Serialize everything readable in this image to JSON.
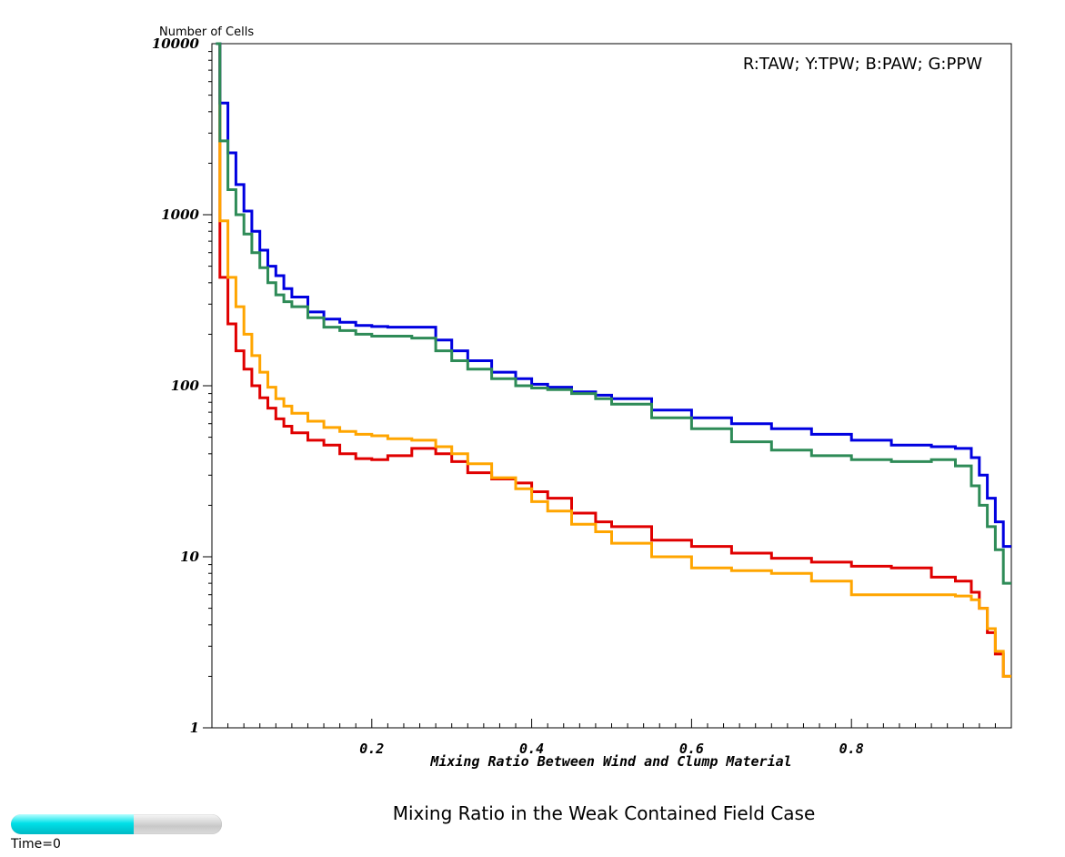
{
  "chart_data": {
    "type": "line",
    "title": "Mixing Ratio in the Weak Contained Field Case",
    "xlabel": "Mixing Ratio Between Wind and Clump Material",
    "ylabel": "Number of Cells",
    "xlim": [
      0,
      1
    ],
    "ylim": [
      1,
      10000
    ],
    "y_scale": "log",
    "x_ticks": [
      0.2,
      0.4,
      0.6,
      0.8
    ],
    "x_tick_labels": [
      "0.2",
      "0.4",
      "0.6",
      "0.8"
    ],
    "y_ticks": [
      1,
      10,
      100,
      1000,
      10000
    ],
    "y_tick_labels": [
      "1",
      "10",
      "100",
      "1000",
      "10000"
    ],
    "legend_text": "R:TAW; Y:TPW; B:PAW; G:PPW",
    "legend_position": "top-right",
    "grid": false,
    "series": [
      {
        "name": "TAW",
        "color": "#e00000",
        "points": [
          [
            0.01,
            430
          ],
          [
            0.02,
            230
          ],
          [
            0.03,
            160
          ],
          [
            0.04,
            125
          ],
          [
            0.05,
            100
          ],
          [
            0.06,
            85
          ],
          [
            0.07,
            74
          ],
          [
            0.08,
            64
          ],
          [
            0.09,
            58
          ],
          [
            0.1,
            53
          ],
          [
            0.12,
            48
          ],
          [
            0.14,
            45
          ],
          [
            0.16,
            40
          ],
          [
            0.18,
            37.5
          ],
          [
            0.2,
            37
          ],
          [
            0.22,
            39
          ],
          [
            0.25,
            43
          ],
          [
            0.28,
            40
          ],
          [
            0.3,
            36
          ],
          [
            0.32,
            31
          ],
          [
            0.35,
            28.5
          ],
          [
            0.38,
            27
          ],
          [
            0.4,
            24
          ],
          [
            0.42,
            22
          ],
          [
            0.45,
            18
          ],
          [
            0.48,
            16
          ],
          [
            0.5,
            15
          ],
          [
            0.55,
            12.5
          ],
          [
            0.6,
            11.5
          ],
          [
            0.65,
            10.5
          ],
          [
            0.7,
            9.8
          ],
          [
            0.75,
            9.3
          ],
          [
            0.8,
            8.8
          ],
          [
            0.85,
            8.6
          ],
          [
            0.9,
            7.6
          ],
          [
            0.93,
            7.2
          ],
          [
            0.95,
            6.2
          ],
          [
            0.96,
            5
          ],
          [
            0.97,
            3.6
          ],
          [
            0.98,
            2.7
          ],
          [
            0.99,
            2
          ],
          [
            1.0,
            2
          ]
        ]
      },
      {
        "name": "TPW",
        "color": "#ffa500",
        "points": [
          [
            0.01,
            920
          ],
          [
            0.02,
            430
          ],
          [
            0.03,
            290
          ],
          [
            0.04,
            200
          ],
          [
            0.05,
            150
          ],
          [
            0.06,
            120
          ],
          [
            0.07,
            98
          ],
          [
            0.08,
            84
          ],
          [
            0.09,
            76
          ],
          [
            0.1,
            69
          ],
          [
            0.12,
            62
          ],
          [
            0.14,
            57
          ],
          [
            0.16,
            54
          ],
          [
            0.18,
            52
          ],
          [
            0.2,
            51
          ],
          [
            0.22,
            49
          ],
          [
            0.25,
            48
          ],
          [
            0.28,
            44
          ],
          [
            0.3,
            40
          ],
          [
            0.32,
            35
          ],
          [
            0.35,
            29
          ],
          [
            0.38,
            25
          ],
          [
            0.4,
            21
          ],
          [
            0.42,
            18.5
          ],
          [
            0.45,
            15.5
          ],
          [
            0.48,
            14
          ],
          [
            0.5,
            12
          ],
          [
            0.55,
            10
          ],
          [
            0.6,
            8.6
          ],
          [
            0.65,
            8.3
          ],
          [
            0.7,
            8
          ],
          [
            0.75,
            7.2
          ],
          [
            0.8,
            6
          ],
          [
            0.85,
            6
          ],
          [
            0.9,
            6
          ],
          [
            0.93,
            5.9
          ],
          [
            0.95,
            5.6
          ],
          [
            0.96,
            5
          ],
          [
            0.97,
            3.8
          ],
          [
            0.98,
            2.8
          ],
          [
            0.99,
            2
          ],
          [
            1.0,
            2
          ]
        ]
      },
      {
        "name": "PAW",
        "color": "#0000e0",
        "points": [
          [
            0.005,
            20000
          ],
          [
            0.01,
            4500
          ],
          [
            0.02,
            2300
          ],
          [
            0.03,
            1500
          ],
          [
            0.04,
            1050
          ],
          [
            0.05,
            800
          ],
          [
            0.06,
            620
          ],
          [
            0.07,
            500
          ],
          [
            0.08,
            440
          ],
          [
            0.09,
            370
          ],
          [
            0.1,
            330
          ],
          [
            0.12,
            270
          ],
          [
            0.14,
            245
          ],
          [
            0.16,
            235
          ],
          [
            0.18,
            225
          ],
          [
            0.2,
            222
          ],
          [
            0.22,
            220
          ],
          [
            0.25,
            220
          ],
          [
            0.28,
            185
          ],
          [
            0.3,
            160
          ],
          [
            0.32,
            140
          ],
          [
            0.35,
            120
          ],
          [
            0.38,
            110
          ],
          [
            0.4,
            102
          ],
          [
            0.42,
            98
          ],
          [
            0.45,
            92
          ],
          [
            0.48,
            88
          ],
          [
            0.5,
            84
          ],
          [
            0.55,
            72
          ],
          [
            0.6,
            65
          ],
          [
            0.65,
            60
          ],
          [
            0.7,
            56
          ],
          [
            0.75,
            52
          ],
          [
            0.8,
            48
          ],
          [
            0.85,
            45
          ],
          [
            0.9,
            44
          ],
          [
            0.93,
            43
          ],
          [
            0.95,
            38
          ],
          [
            0.96,
            30
          ],
          [
            0.97,
            22
          ],
          [
            0.98,
            16
          ],
          [
            0.99,
            11.5
          ],
          [
            1.0,
            11.5
          ]
        ]
      },
      {
        "name": "PPW",
        "color": "#2e8b57",
        "points": [
          [
            0.005,
            20000
          ],
          [
            0.01,
            2700
          ],
          [
            0.02,
            1400
          ],
          [
            0.03,
            1000
          ],
          [
            0.04,
            770
          ],
          [
            0.05,
            600
          ],
          [
            0.06,
            490
          ],
          [
            0.07,
            400
          ],
          [
            0.08,
            340
          ],
          [
            0.09,
            310
          ],
          [
            0.1,
            290
          ],
          [
            0.12,
            250
          ],
          [
            0.14,
            220
          ],
          [
            0.16,
            210
          ],
          [
            0.18,
            200
          ],
          [
            0.2,
            195
          ],
          [
            0.22,
            195
          ],
          [
            0.25,
            190
          ],
          [
            0.28,
            160
          ],
          [
            0.3,
            140
          ],
          [
            0.32,
            125
          ],
          [
            0.35,
            110
          ],
          [
            0.38,
            100
          ],
          [
            0.4,
            97
          ],
          [
            0.42,
            95
          ],
          [
            0.45,
            90
          ],
          [
            0.48,
            84
          ],
          [
            0.5,
            78
          ],
          [
            0.55,
            65
          ],
          [
            0.6,
            56
          ],
          [
            0.65,
            47
          ],
          [
            0.7,
            42
          ],
          [
            0.75,
            39
          ],
          [
            0.8,
            37
          ],
          [
            0.85,
            36
          ],
          [
            0.9,
            37
          ],
          [
            0.93,
            34
          ],
          [
            0.95,
            26
          ],
          [
            0.96,
            20
          ],
          [
            0.97,
            15
          ],
          [
            0.98,
            11
          ],
          [
            0.99,
            7
          ],
          [
            1.0,
            7
          ]
        ]
      }
    ]
  },
  "time_slider": {
    "label": "Time=0",
    "progress": 0.58
  }
}
